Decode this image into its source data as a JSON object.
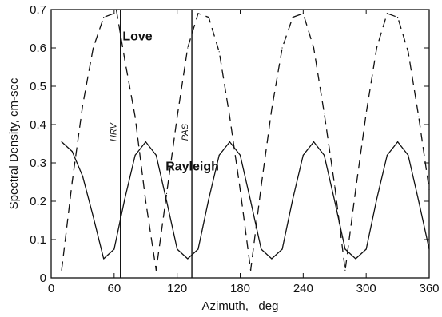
{
  "chart_data": {
    "type": "line",
    "title": "",
    "xlabel": "Azimuth,   deg",
    "ylabel": "Spectral Density, cm-sec",
    "xlim": [
      0,
      360
    ],
    "ylim": [
      0,
      0.7
    ],
    "xticks": [
      0,
      60,
      120,
      180,
      240,
      300,
      360
    ],
    "yticks": [
      0,
      0.1,
      0.2,
      0.3,
      0.4,
      0.5,
      0.6,
      0.7
    ],
    "grid": false,
    "series": [
      {
        "name": "Love",
        "style": "dashed",
        "x": [
          10,
          20,
          30,
          40,
          50,
          60,
          62,
          70,
          80,
          90,
          100,
          110,
          120,
          130,
          140,
          150,
          160,
          170,
          180,
          190,
          200,
          210,
          220,
          230,
          240,
          250,
          260,
          270,
          280,
          290,
          300,
          310,
          320,
          330,
          340,
          350,
          360
        ],
        "values": [
          0.02,
          0.25,
          0.45,
          0.6,
          0.68,
          0.69,
          0.7,
          0.57,
          0.42,
          0.2,
          0.02,
          0.22,
          0.42,
          0.6,
          0.69,
          0.68,
          0.59,
          0.42,
          0.23,
          0.02,
          0.24,
          0.44,
          0.6,
          0.68,
          0.69,
          0.6,
          0.43,
          0.24,
          0.02,
          0.23,
          0.43,
          0.6,
          0.69,
          0.68,
          0.59,
          0.42,
          0.23
        ]
      },
      {
        "name": "Rayleigh",
        "style": "solid",
        "x": [
          10,
          20,
          30,
          40,
          50,
          60,
          70,
          80,
          90,
          100,
          110,
          120,
          130,
          140,
          150,
          160,
          170,
          180,
          190,
          200,
          210,
          220,
          230,
          240,
          250,
          260,
          270,
          280,
          290,
          300,
          310,
          320,
          330,
          340,
          350,
          360
        ],
        "values": [
          0.355,
          0.33,
          0.265,
          0.16,
          0.05,
          0.075,
          0.205,
          0.32,
          0.355,
          0.32,
          0.2,
          0.075,
          0.05,
          0.075,
          0.205,
          0.32,
          0.355,
          0.32,
          0.2,
          0.075,
          0.05,
          0.075,
          0.205,
          0.32,
          0.355,
          0.32,
          0.2,
          0.075,
          0.05,
          0.075,
          0.205,
          0.32,
          0.355,
          0.32,
          0.2,
          0.075
        ]
      }
    ],
    "vlines": [
      {
        "x": 66,
        "label": "HRV"
      },
      {
        "x": 134,
        "label": "PAS"
      }
    ],
    "annotations": [
      {
        "text": "Love",
        "x": 68,
        "y": 0.62
      },
      {
        "text": "Rayleigh",
        "x": 109,
        "y": 0.28
      }
    ]
  }
}
